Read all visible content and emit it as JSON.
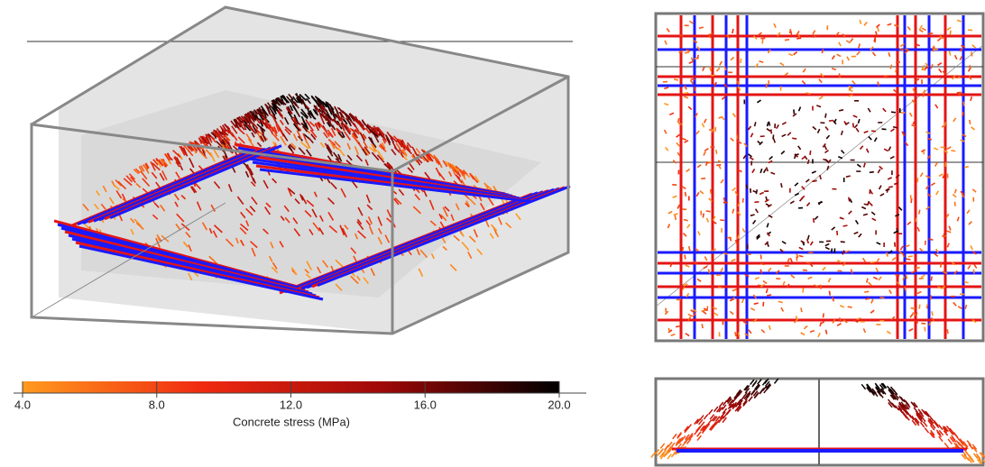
{
  "chart_data": {
    "type": "colorbar",
    "xlabel": "Concrete stress (MPa)",
    "xlim": [
      4,
      20
    ],
    "xticks": [
      {
        "value": 4,
        "label": "4.0"
      },
      {
        "value": 8,
        "label": "8.0"
      },
      {
        "value": 12,
        "label": "12.0"
      },
      {
        "value": 16,
        "label": "16.0"
      },
      {
        "value": 20,
        "label": "20.0"
      }
    ],
    "colors": [
      "#ff9a1e",
      "#f02a10",
      "#a00808",
      "#000000"
    ]
  }
}
